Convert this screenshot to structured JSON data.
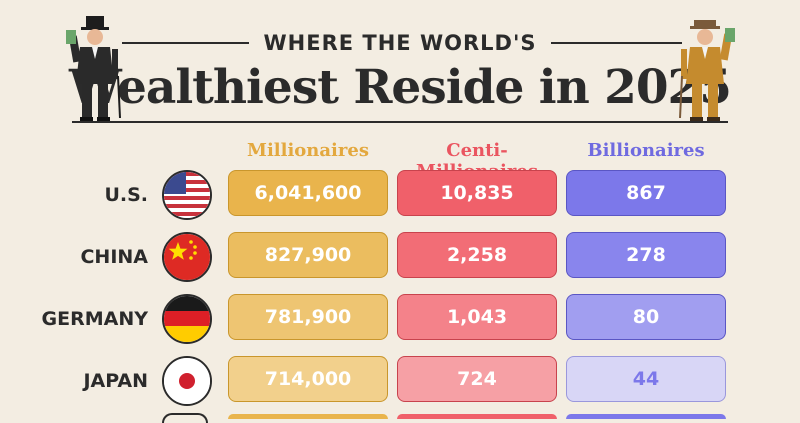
{
  "header": {
    "subtitle": "WHERE THE WORLD'S",
    "title": "Wealthiest Reside in 2025"
  },
  "colors": {
    "background": "#f3ede2",
    "millionaires": "#e9b44c",
    "centi_millionaires": "#f0606a",
    "billionaires": "#7c78ea",
    "text_dark": "#2b2b2b"
  },
  "chart_data": {
    "type": "table",
    "title": "Wealthiest Reside in 2025",
    "subtitle": "WHERE THE WORLD'S",
    "columns": [
      "Millionaires",
      "Centi-Millionaires",
      "Billionaires"
    ],
    "rows": [
      {
        "country": "U.S.",
        "flag": "us-flag-icon",
        "values": [
          "6,041,600",
          "10,835",
          "867"
        ]
      },
      {
        "country": "CHINA",
        "flag": "china-flag-icon",
        "values": [
          "827,900",
          "2,258",
          "278"
        ]
      },
      {
        "country": "GERMANY",
        "flag": "germany-flag-icon",
        "values": [
          "781,900",
          "1,043",
          "80"
        ]
      },
      {
        "country": "JAPAN",
        "flag": "japan-flag-icon",
        "values": [
          "714,000",
          "724",
          "44"
        ]
      }
    ]
  }
}
